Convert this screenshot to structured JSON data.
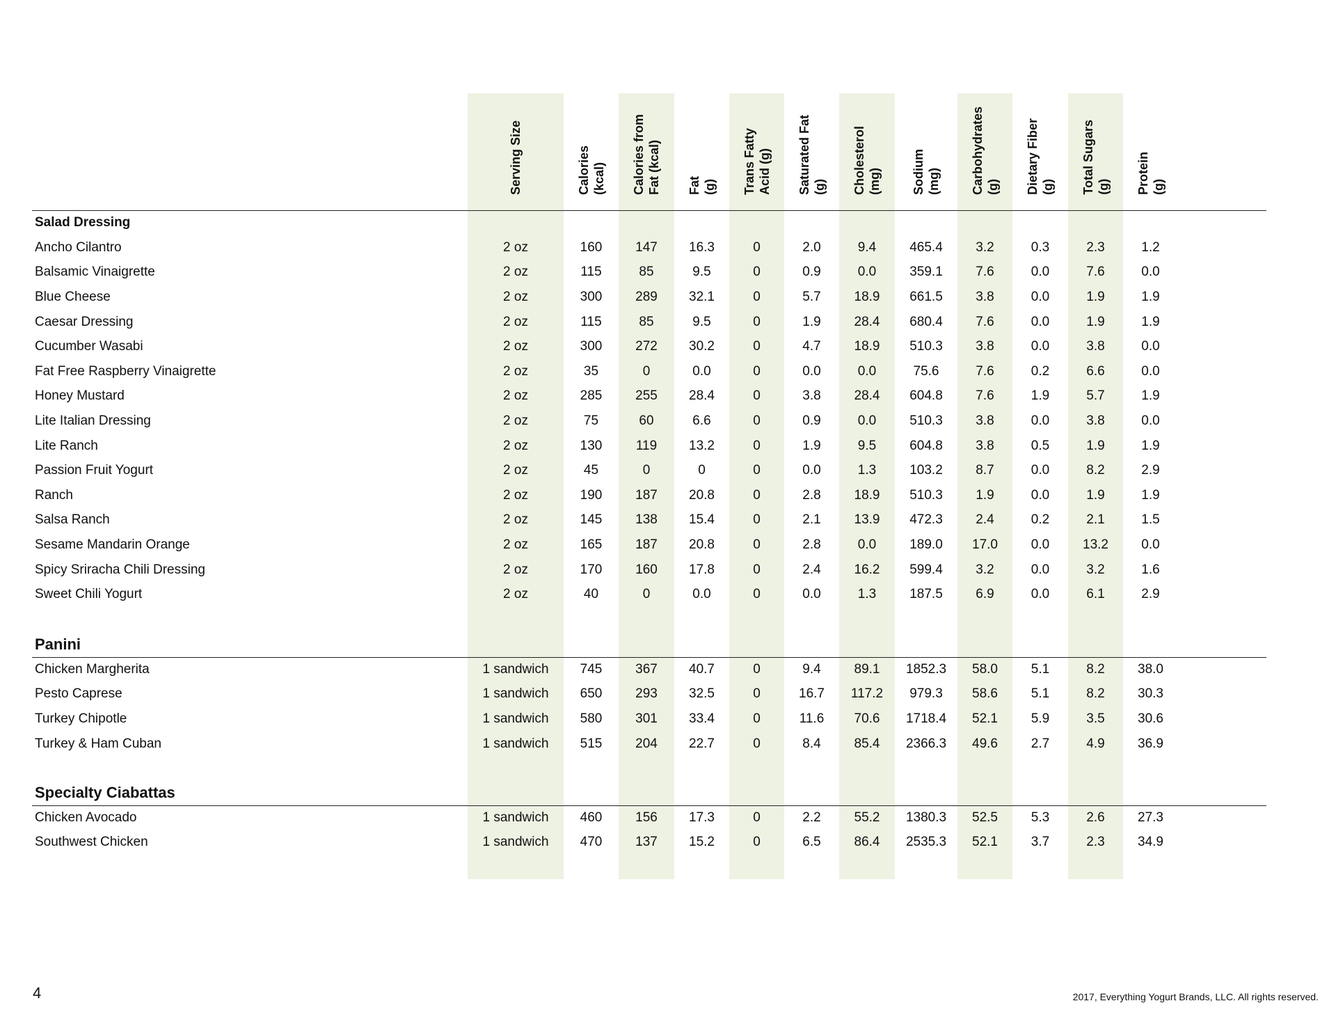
{
  "colors": {
    "band": "#eef2e3",
    "rule": "#222222"
  },
  "columns": [
    "Serving Size",
    "Calories\n(kcal)",
    "Calories from\nFat (kcal)",
    "Fat\n(g)",
    "Trans Fatty\nAcid (g)",
    "Saturated Fat\n(g)",
    "Cholesterol\n(mg)",
    "Sodium\n(mg)",
    "Carbohydrates\n(g)",
    "Dietary Fiber\n(g)",
    "Total Sugars\n(g)",
    "Protein\n(g)"
  ],
  "sections": [
    {
      "title": "Salad Dressing",
      "items": [
        {
          "name": "Ancho Cilantro",
          "values": [
            "2 oz",
            "160",
            "147",
            "16.3",
            "0",
            "2.0",
            "9.4",
            "465.4",
            "3.2",
            "0.3",
            "2.3",
            "1.2"
          ]
        },
        {
          "name": "Balsamic Vinaigrette",
          "values": [
            "2 oz",
            "115",
            "85",
            "9.5",
            "0",
            "0.9",
            "0.0",
            "359.1",
            "7.6",
            "0.0",
            "7.6",
            "0.0"
          ]
        },
        {
          "name": "Blue Cheese",
          "values": [
            "2 oz",
            "300",
            "289",
            "32.1",
            "0",
            "5.7",
            "18.9",
            "661.5",
            "3.8",
            "0.0",
            "1.9",
            "1.9"
          ]
        },
        {
          "name": "Caesar Dressing",
          "values": [
            "2 oz",
            "115",
            "85",
            "9.5",
            "0",
            "1.9",
            "28.4",
            "680.4",
            "7.6",
            "0.0",
            "1.9",
            "1.9"
          ]
        },
        {
          "name": "Cucumber Wasabi",
          "values": [
            "2 oz",
            "300",
            "272",
            "30.2",
            "0",
            "4.7",
            "18.9",
            "510.3",
            "3.8",
            "0.0",
            "3.8",
            "0.0"
          ]
        },
        {
          "name": "Fat Free Raspberry Vinaigrette",
          "values": [
            "2 oz",
            "35",
            "0",
            "0.0",
            "0",
            "0.0",
            "0.0",
            "75.6",
            "7.6",
            "0.2",
            "6.6",
            "0.0"
          ]
        },
        {
          "name": "Honey Mustard",
          "values": [
            "2 oz",
            "285",
            "255",
            "28.4",
            "0",
            "3.8",
            "28.4",
            "604.8",
            "7.6",
            "1.9",
            "5.7",
            "1.9"
          ]
        },
        {
          "name": "Lite Italian Dressing",
          "values": [
            "2 oz",
            "75",
            "60",
            "6.6",
            "0",
            "0.9",
            "0.0",
            "510.3",
            "3.8",
            "0.0",
            "3.8",
            "0.0"
          ]
        },
        {
          "name": "Lite Ranch",
          "values": [
            "2 oz",
            "130",
            "119",
            "13.2",
            "0",
            "1.9",
            "9.5",
            "604.8",
            "3.8",
            "0.5",
            "1.9",
            "1.9"
          ]
        },
        {
          "name": "Passion Fruit Yogurt",
          "values": [
            "2 oz",
            "45",
            "0",
            "0",
            "0",
            "0.0",
            "1.3",
            "103.2",
            "8.7",
            "0.0",
            "8.2",
            "2.9"
          ]
        },
        {
          "name": "Ranch",
          "values": [
            "2 oz",
            "190",
            "187",
            "20.8",
            "0",
            "2.8",
            "18.9",
            "510.3",
            "1.9",
            "0.0",
            "1.9",
            "1.9"
          ]
        },
        {
          "name": "Salsa Ranch",
          "values": [
            "2 oz",
            "145",
            "138",
            "15.4",
            "0",
            "2.1",
            "13.9",
            "472.3",
            "2.4",
            "0.2",
            "2.1",
            "1.5"
          ]
        },
        {
          "name": "Sesame Mandarin Orange",
          "values": [
            "2 oz",
            "165",
            "187",
            "20.8",
            "0",
            "2.8",
            "0.0",
            "189.0",
            "17.0",
            "0.0",
            "13.2",
            "0.0"
          ]
        },
        {
          "name": "Spicy Sriracha Chili Dressing",
          "values": [
            "2 oz",
            "170",
            "160",
            "17.8",
            "0",
            "2.4",
            "16.2",
            "599.4",
            "3.2",
            "0.0",
            "3.2",
            "1.6"
          ]
        },
        {
          "name": "Sweet Chili Yogurt",
          "values": [
            "2 oz",
            "40",
            "0",
            "0.0",
            "0",
            "0.0",
            "1.3",
            "187.5",
            "6.9",
            "0.0",
            "6.1",
            "2.9"
          ]
        }
      ]
    },
    {
      "title": "Panini",
      "items": [
        {
          "name": "Chicken Margherita",
          "values": [
            "1 sandwich",
            "745",
            "367",
            "40.7",
            "0",
            "9.4",
            "89.1",
            "1852.3",
            "58.0",
            "5.1",
            "8.2",
            "38.0"
          ]
        },
        {
          "name": "Pesto Caprese",
          "values": [
            "1 sandwich",
            "650",
            "293",
            "32.5",
            "0",
            "16.7",
            "117.2",
            "979.3",
            "58.6",
            "5.1",
            "8.2",
            "30.3"
          ]
        },
        {
          "name": "Turkey Chipotle",
          "values": [
            "1 sandwich",
            "580",
            "301",
            "33.4",
            "0",
            "11.6",
            "70.6",
            "1718.4",
            "52.1",
            "5.9",
            "3.5",
            "30.6"
          ]
        },
        {
          "name": "Turkey & Ham Cuban",
          "values": [
            "1 sandwich",
            "515",
            "204",
            "22.7",
            "0",
            "8.4",
            "85.4",
            "2366.3",
            "49.6",
            "2.7",
            "4.9",
            "36.9"
          ]
        }
      ]
    },
    {
      "title": "Specialty Ciabattas",
      "items": [
        {
          "name": "Chicken Avocado",
          "values": [
            "1 sandwich",
            "460",
            "156",
            "17.3",
            "0",
            "2.2",
            "55.2",
            "1380.3",
            "52.5",
            "5.3",
            "2.6",
            "27.3"
          ]
        },
        {
          "name": "Southwest Chicken",
          "values": [
            "1 sandwich",
            "470",
            "137",
            "15.2",
            "0",
            "6.5",
            "86.4",
            "2535.3",
            "52.1",
            "3.7",
            "2.3",
            "34.9"
          ]
        }
      ]
    }
  ],
  "footer": {
    "page_number": "4",
    "copyright": "2017, Everything Yogurt Brands, LLC. All rights reserved."
  }
}
